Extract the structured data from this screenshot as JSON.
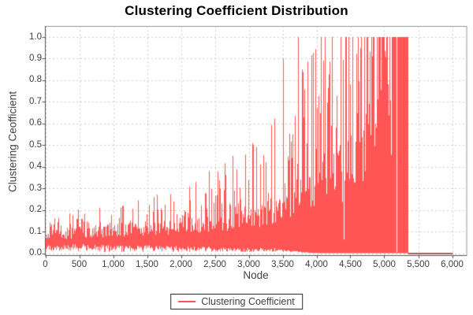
{
  "chart_data": {
    "type": "line",
    "title": "Clustering Coefficient Distribution",
    "xlabel": "Node",
    "ylabel": "Clustering Ceofficient",
    "legend_position": "bottom",
    "grid": "dashed",
    "xlim": [
      0,
      6215
    ],
    "ylim": [
      0,
      1.0
    ],
    "series": [
      {
        "name": "Clustering Coefficient",
        "color": "#ff5555"
      }
    ],
    "x_ticks": [
      {
        "v": 0,
        "label": "0"
      },
      {
        "v": 500,
        "label": "500"
      },
      {
        "v": 1000,
        "label": "1,000"
      },
      {
        "v": 1500,
        "label": "1,500"
      },
      {
        "v": 2000,
        "label": "2,000"
      },
      {
        "v": 2500,
        "label": "2,500"
      },
      {
        "v": 3000,
        "label": "3,000"
      },
      {
        "v": 3500,
        "label": "3,500"
      },
      {
        "v": 4000,
        "label": "4,000"
      },
      {
        "v": 4500,
        "label": "4,500"
      },
      {
        "v": 5000,
        "label": "5,000"
      },
      {
        "v": 5500,
        "label": "5,500"
      },
      {
        "v": 6000,
        "label": "6,000"
      }
    ],
    "y_ticks": [
      {
        "v": 0.0,
        "label": "0.0"
      },
      {
        "v": 0.1,
        "label": "0.1"
      },
      {
        "v": 0.2,
        "label": "0.2"
      },
      {
        "v": 0.3,
        "label": "0.3"
      },
      {
        "v": 0.4,
        "label": "0.4"
      },
      {
        "v": 0.5,
        "label": "0.5"
      },
      {
        "v": 0.6,
        "label": "0.6"
      },
      {
        "v": 0.7,
        "label": "0.7"
      },
      {
        "v": 0.8,
        "label": "0.8"
      },
      {
        "v": 0.9,
        "label": "0.9"
      },
      {
        "v": 1.0,
        "label": "1.0"
      }
    ],
    "nodes_total_approx": 6010,
    "profile_envelope": [
      {
        "x": 0,
        "lo": 0.035,
        "hi": 0.1,
        "sp": 0.3,
        "smax": 0.17,
        "exact": 0.0
      },
      {
        "x": 600,
        "lo": 0.035,
        "hi": 0.115,
        "sp": 0.32,
        "smax": 0.21,
        "exact": 0.0
      },
      {
        "x": 1200,
        "lo": 0.03,
        "hi": 0.13,
        "sp": 0.33,
        "smax": 0.24,
        "exact": 0.0
      },
      {
        "x": 1800,
        "lo": 0.03,
        "hi": 0.14,
        "sp": 0.34,
        "smax": 0.29,
        "exact": 0.0
      },
      {
        "x": 2400,
        "lo": 0.025,
        "hi": 0.155,
        "sp": 0.36,
        "smax": 0.38,
        "exact": 0.0
      },
      {
        "x": 2900,
        "lo": 0.02,
        "hi": 0.18,
        "sp": 0.4,
        "smax": 0.48,
        "exact": 0.0
      },
      {
        "x": 3400,
        "lo": 0.02,
        "hi": 0.22,
        "sp": 0.45,
        "smax": 0.65,
        "exact": 0.02
      },
      {
        "x": 3800,
        "lo": 0.005,
        "hi": 0.3,
        "sp": 0.5,
        "smax": 0.85,
        "exact": 0.08
      },
      {
        "x": 4100,
        "lo": 0.0,
        "hi": 0.4,
        "sp": 0.52,
        "smax": 1.0,
        "exact": 0.22
      },
      {
        "x": 4500,
        "lo": 0.0,
        "hi": 0.5,
        "sp": 0.58,
        "smax": 1.0,
        "exact": 0.3
      },
      {
        "x": 4800,
        "lo": 0.0,
        "hi": 0.55,
        "sp": 0.72,
        "smax": 1.0,
        "exact": 0.45
      },
      {
        "x": 5120,
        "lo": 0.0,
        "hi": 0.62,
        "sp": 0.85,
        "smax": 1.0,
        "exact": 0.6
      }
    ],
    "notable_spikes": [
      {
        "x": 480,
        "v": 0.2
      },
      {
        "x": 800,
        "v": 0.21
      },
      {
        "x": 1150,
        "v": 0.22
      },
      {
        "x": 1600,
        "v": 0.26
      },
      {
        "x": 2210,
        "v": 0.33
      },
      {
        "x": 2580,
        "v": 0.3
      },
      {
        "x": 2760,
        "v": 0.45
      },
      {
        "x": 3060,
        "v": 0.5
      },
      {
        "x": 3250,
        "v": 0.42
      },
      {
        "x": 3510,
        "v": 0.9
      },
      {
        "x": 3650,
        "v": 0.55
      },
      {
        "x": 3730,
        "v": 1.0
      },
      {
        "x": 3790,
        "v": 0.85
      },
      {
        "x": 3950,
        "v": 0.87
      },
      {
        "x": 4060,
        "v": 1.0
      },
      {
        "x": 4120,
        "v": 1.0
      },
      {
        "x": 4230,
        "v": 1.0
      },
      {
        "x": 4350,
        "v": 1.0
      },
      {
        "x": 4430,
        "v": 1.0
      }
    ],
    "saturation_block": {
      "from": 5120,
      "to": 5350,
      "min": 0,
      "max": 1,
      "gaps": [
        5180
      ]
    },
    "zero_tail": {
      "from": 5350,
      "to": 6010,
      "value": 0,
      "color": "#8e2424"
    },
    "seed": 1337,
    "colors": {
      "series": "#ff5555",
      "tail": "#8e2424",
      "grid": "#cdcdcd",
      "frame": "#999999",
      "axis": "#555555",
      "tick_label": "#404040",
      "title": "#000000"
    }
  }
}
